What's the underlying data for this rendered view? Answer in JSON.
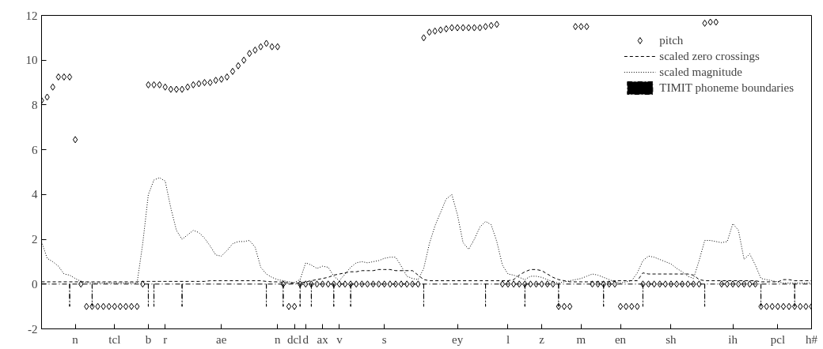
{
  "chart_data": {
    "type": "scatter",
    "ylim": [
      -2,
      12
    ],
    "yticks": [
      -2,
      0,
      2,
      4,
      6,
      8,
      10,
      12
    ],
    "categories": [
      null,
      null,
      null,
      null,
      null,
      null,
      "n",
      null,
      null,
      null,
      null,
      null,
      null,
      "tcl",
      null,
      null,
      null,
      null,
      null,
      "b",
      null,
      null,
      "r",
      null,
      null,
      null,
      null,
      null,
      null,
      null,
      null,
      null,
      "ae",
      null,
      null,
      null,
      null,
      null,
      null,
      null,
      null,
      null,
      "n",
      null,
      null,
      "dcl",
      null,
      "d",
      null,
      null,
      "ax",
      null,
      null,
      "v",
      null,
      null,
      null,
      null,
      null,
      null,
      null,
      "s",
      null,
      null,
      null,
      null,
      null,
      null,
      null,
      null,
      null,
      null,
      null,
      null,
      "ey",
      null,
      null,
      null,
      null,
      null,
      null,
      null,
      null,
      "l",
      null,
      null,
      null,
      null,
      null,
      "z",
      null,
      null,
      null,
      null,
      null,
      null,
      "m",
      null,
      null,
      null,
      null,
      null,
      null,
      "en",
      null,
      null,
      null,
      null,
      null,
      null,
      null,
      null,
      "sh",
      null,
      null,
      null,
      null,
      null,
      null,
      null,
      null,
      null,
      null,
      "ih",
      null,
      null,
      null,
      null,
      null,
      null,
      null,
      "pcl",
      null,
      null,
      null,
      null,
      null,
      "h#"
    ],
    "legend": "top right",
    "series": [
      {
        "name": "pitch",
        "marker": "diamond",
        "color": "#000000",
        "values": [
          8.2,
          8.35,
          8.8,
          9.25,
          9.25,
          9.25,
          6.45,
          0,
          -1,
          -1,
          -1,
          -1,
          -1,
          -1,
          -1,
          -1,
          -1,
          -1,
          0,
          8.9,
          8.9,
          8.9,
          8.8,
          8.7,
          8.7,
          8.7,
          8.8,
          8.9,
          8.95,
          9.0,
          9.0,
          9.1,
          9.15,
          9.25,
          9.5,
          9.75,
          10.0,
          10.3,
          10.45,
          10.6,
          10.75,
          10.6,
          10.6,
          0,
          -1,
          -1,
          0,
          0,
          0,
          0,
          0,
          0,
          0,
          0,
          0,
          0,
          0,
          0,
          0,
          0,
          0,
          0,
          0,
          0,
          0,
          0,
          0,
          0,
          11.0,
          11.25,
          11.3,
          11.35,
          11.4,
          11.45,
          11.45,
          11.45,
          11.45,
          11.45,
          11.45,
          11.5,
          11.55,
          11.6,
          0,
          0,
          0,
          0,
          0,
          0,
          0,
          0,
          0,
          0,
          -1,
          -1,
          -1,
          11.5,
          11.5,
          11.5,
          0,
          0,
          0,
          0,
          0,
          -1,
          -1,
          -1,
          -1,
          0,
          0,
          0,
          0,
          0,
          0,
          0,
          0,
          0,
          0,
          0,
          11.65,
          11.7,
          11.7,
          0,
          0,
          0,
          0,
          0,
          0,
          0,
          -1,
          -1,
          -1,
          -1,
          -1,
          -1,
          -1,
          -1,
          -1,
          -1
        ]
      },
      {
        "name": "scaled zero crossings",
        "type": "line",
        "line_style": "dashed",
        "color": "#000000",
        "values": [
          0.1,
          0.1,
          0.1,
          0.1,
          0.1,
          0.1,
          0.1,
          0.1,
          0.1,
          0.1,
          0.1,
          0.1,
          0.1,
          0.1,
          0.1,
          0.1,
          0.1,
          0.1,
          0.12,
          0.12,
          0.12,
          0.12,
          0.12,
          0.12,
          0.12,
          0.12,
          0.12,
          0.12,
          0.12,
          0.12,
          0.15,
          0.15,
          0.15,
          0.15,
          0.15,
          0.15,
          0.15,
          0.15,
          0.15,
          0.15,
          0.12,
          0.1,
          0.1,
          0.08,
          0.05,
          0.05,
          0.05,
          0.1,
          0.15,
          0.2,
          0.25,
          0.3,
          0.4,
          0.45,
          0.5,
          0.55,
          0.55,
          0.6,
          0.6,
          0.6,
          0.65,
          0.65,
          0.65,
          0.6,
          0.6,
          0.6,
          0.6,
          0.4,
          0.2,
          0.15,
          0.15,
          0.15,
          0.15,
          0.15,
          0.15,
          0.15,
          0.15,
          0.15,
          0.15,
          0.15,
          0.15,
          0.15,
          0.15,
          0.15,
          0.2,
          0.4,
          0.55,
          0.65,
          0.65,
          0.6,
          0.45,
          0.3,
          0.2,
          0.15,
          0.1,
          0.1,
          0.1,
          0.1,
          0.1,
          0.1,
          0.1,
          0.1,
          0.15,
          0.15,
          0.15,
          0.15,
          0.15,
          0.5,
          0.45,
          0.45,
          0.45,
          0.45,
          0.45,
          0.45,
          0.45,
          0.45,
          0.4,
          0.2,
          0.15,
          0.15,
          0.15,
          0.15,
          0.15,
          0.15,
          0.15,
          0.15,
          0.15,
          0.15,
          0.1,
          0.1,
          0.1,
          0.1,
          0.2,
          0.2,
          0.15,
          0.15,
          0.15,
          0.15
        ]
      },
      {
        "name": "scaled magnitude",
        "type": "line",
        "line_style": "dotted",
        "color": "#000000",
        "values": [
          1.9,
          1.15,
          1.0,
          0.8,
          0.45,
          0.4,
          0.25,
          0.12,
          0.07,
          0.05,
          0.05,
          0.05,
          0.05,
          0.05,
          0.05,
          0.05,
          0.05,
          0.05,
          1.8,
          4.0,
          4.65,
          4.75,
          4.6,
          3.4,
          2.4,
          2.0,
          2.2,
          2.4,
          2.3,
          2.05,
          1.7,
          1.3,
          1.25,
          1.5,
          1.8,
          1.9,
          1.9,
          1.95,
          1.65,
          0.75,
          0.45,
          0.3,
          0.2,
          0.15,
          0.1,
          0.07,
          0.2,
          0.95,
          0.85,
          0.7,
          0.8,
          0.75,
          0.35,
          0.15,
          0.45,
          0.75,
          0.95,
          1.0,
          0.95,
          1.0,
          1.05,
          1.15,
          1.2,
          1.2,
          0.8,
          0.35,
          0.25,
          0.2,
          0.7,
          1.8,
          2.6,
          3.2,
          3.8,
          4.0,
          3.1,
          1.85,
          1.55,
          2.0,
          2.55,
          2.8,
          2.65,
          1.9,
          0.85,
          0.45,
          0.4,
          0.3,
          0.2,
          0.35,
          0.35,
          0.3,
          0.2,
          0.1,
          0.05,
          0.1,
          0.15,
          0.2,
          0.25,
          0.35,
          0.45,
          0.4,
          0.3,
          0.2,
          0.1,
          0.05,
          0.1,
          0.15,
          0.5,
          1.05,
          1.25,
          1.2,
          1.1,
          1.0,
          0.9,
          0.7,
          0.55,
          0.35,
          0.25,
          1.05,
          1.95,
          1.95,
          1.9,
          1.85,
          1.9,
          2.7,
          2.4,
          1.1,
          1.35,
          0.85,
          0.25,
          0.2,
          0.15,
          0.1,
          0.05,
          0.05,
          0.05,
          0.05,
          0.05,
          0.05
        ]
      },
      {
        "name": "TIMIT phoneme boundaries",
        "type": "bar",
        "line_style": "dashdot",
        "color": "#000000",
        "values": [
          null,
          null,
          null,
          null,
          null,
          -1,
          null,
          null,
          null,
          -1,
          null,
          null,
          null,
          null,
          null,
          null,
          null,
          null,
          null,
          -1,
          -1,
          null,
          null,
          null,
          null,
          -1,
          null,
          null,
          null,
          null,
          null,
          null,
          null,
          null,
          null,
          null,
          null,
          null,
          null,
          null,
          -1,
          null,
          null,
          -1,
          null,
          null,
          -1,
          null,
          -1,
          null,
          null,
          null,
          -1,
          null,
          null,
          -1,
          null,
          null,
          null,
          null,
          null,
          null,
          null,
          null,
          null,
          null,
          null,
          null,
          -1,
          null,
          null,
          null,
          null,
          null,
          null,
          null,
          null,
          null,
          null,
          -1,
          null,
          null,
          null,
          null,
          null,
          null,
          -1,
          null,
          null,
          null,
          null,
          null,
          -1,
          null,
          null,
          null,
          null,
          null,
          null,
          null,
          -1,
          null,
          null,
          null,
          null,
          null,
          null,
          -1,
          null,
          null,
          null,
          null,
          null,
          null,
          null,
          null,
          null,
          null,
          -1,
          null,
          null,
          null,
          null,
          null,
          null,
          null,
          null,
          null,
          -1,
          null,
          null,
          null,
          null,
          null,
          -1,
          null,
          null,
          null
        ]
      }
    ]
  }
}
